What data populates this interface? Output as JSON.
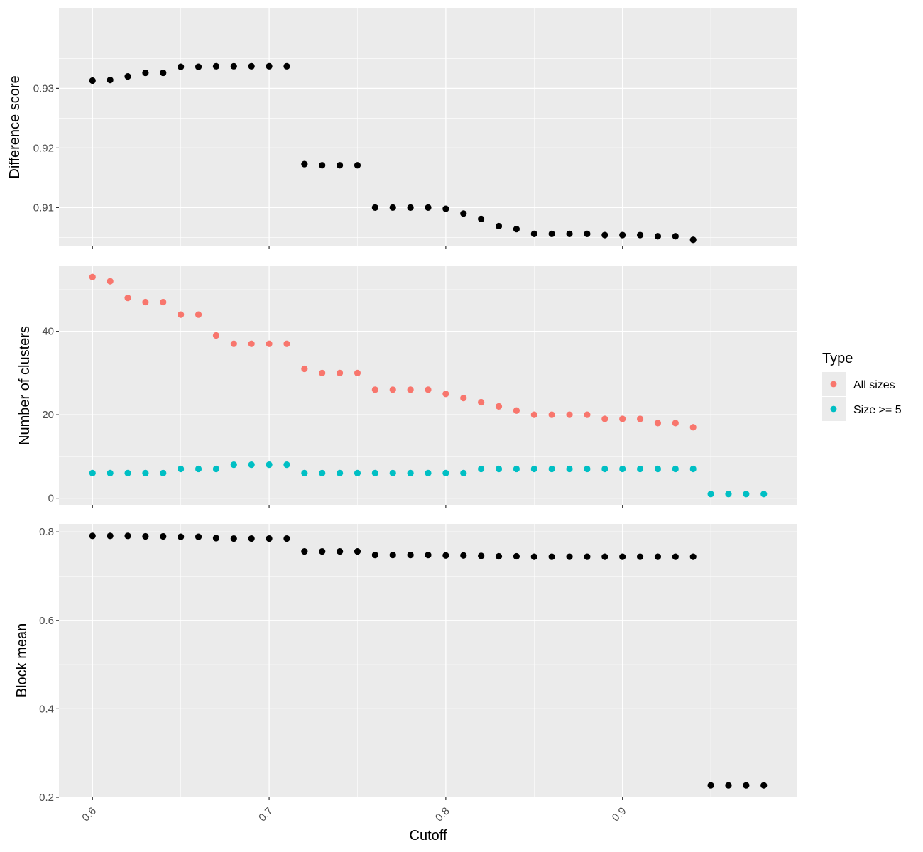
{
  "chart_data": [
    {
      "type": "scatter",
      "panel": "top",
      "xlabel": "",
      "ylabel": "Difference score",
      "ylim": [
        0.9035,
        0.9435
      ],
      "y_ticks": [
        0.91,
        0.92,
        0.93
      ],
      "y_tick_labels": [
        "0.91",
        "0.92",
        "0.93"
      ],
      "y_minor": [
        0.905,
        0.915,
        0.925,
        0.935
      ],
      "grid": true,
      "series": [
        {
          "color": "#000000",
          "x": [
            0.6,
            0.61,
            0.62,
            0.63,
            0.64,
            0.65,
            0.66,
            0.67,
            0.68,
            0.69,
            0.7,
            0.71,
            0.72,
            0.73,
            0.74,
            0.75,
            0.76,
            0.77,
            0.78,
            0.79,
            0.8,
            0.81,
            0.82,
            0.83,
            0.84,
            0.85,
            0.86,
            0.87,
            0.88,
            0.89,
            0.9,
            0.91,
            0.92,
            0.93,
            0.94
          ],
          "y": [
            0.9313,
            0.9314,
            0.932,
            0.9326,
            0.9326,
            0.9336,
            0.9336,
            0.9337,
            0.9337,
            0.9337,
            0.9337,
            0.9337,
            0.9173,
            0.9171,
            0.9171,
            0.9171,
            0.91,
            0.91,
            0.91,
            0.91,
            0.9098,
            0.909,
            0.9081,
            0.9069,
            0.9064,
            0.9056,
            0.9056,
            0.9056,
            0.9056,
            0.9054,
            0.9054,
            0.9054,
            0.9052,
            0.9052,
            0.9046
          ]
        }
      ]
    },
    {
      "type": "scatter",
      "panel": "middle",
      "xlabel": "",
      "ylabel": "Number of clusters",
      "ylim": [
        -1.6,
        55.6
      ],
      "y_ticks": [
        0,
        20,
        40
      ],
      "y_tick_labels": [
        "0",
        "20",
        "40"
      ],
      "y_minor": [
        10,
        30,
        50
      ],
      "grid": true,
      "legend": {
        "title": "Type",
        "position": "right"
      },
      "series": [
        {
          "name": "All sizes",
          "color": "#F8766D",
          "x": [
            0.6,
            0.61,
            0.62,
            0.63,
            0.64,
            0.65,
            0.66,
            0.67,
            0.68,
            0.69,
            0.7,
            0.71,
            0.72,
            0.73,
            0.74,
            0.75,
            0.76,
            0.77,
            0.78,
            0.79,
            0.8,
            0.81,
            0.82,
            0.83,
            0.84,
            0.85,
            0.86,
            0.87,
            0.88,
            0.89,
            0.9,
            0.91,
            0.92,
            0.93,
            0.94
          ],
          "y": [
            53,
            52,
            48,
            47,
            47,
            44,
            44,
            39,
            37,
            37,
            37,
            37,
            31,
            30,
            30,
            30,
            26,
            26,
            26,
            26,
            25,
            24,
            23,
            22,
            21,
            20,
            20,
            20,
            20,
            19,
            19,
            19,
            18,
            18,
            17
          ]
        },
        {
          "name": "Size >= 5",
          "color": "#00BFC4",
          "x": [
            0.6,
            0.61,
            0.62,
            0.63,
            0.64,
            0.65,
            0.66,
            0.67,
            0.68,
            0.69,
            0.7,
            0.71,
            0.72,
            0.73,
            0.74,
            0.75,
            0.76,
            0.77,
            0.78,
            0.79,
            0.8,
            0.81,
            0.82,
            0.83,
            0.84,
            0.85,
            0.86,
            0.87,
            0.88,
            0.89,
            0.9,
            0.91,
            0.92,
            0.93,
            0.94,
            0.95,
            0.96,
            0.97,
            0.98
          ],
          "y": [
            6,
            6,
            6,
            6,
            6,
            7,
            7,
            7,
            8,
            8,
            8,
            8,
            6,
            6,
            6,
            6,
            6,
            6,
            6,
            6,
            6,
            6,
            7,
            7,
            7,
            7,
            7,
            7,
            7,
            7,
            7,
            7,
            7,
            7,
            7,
            1,
            1,
            1,
            1
          ]
        }
      ]
    },
    {
      "type": "scatter",
      "panel": "bottom",
      "xlabel": "Cutoff",
      "ylabel": "Block mean",
      "ylim": [
        0.2,
        0.818
      ],
      "y_ticks": [
        0.2,
        0.4,
        0.6,
        0.8
      ],
      "y_tick_labels": [
        "0.2",
        "0.4",
        "0.6",
        "0.8"
      ],
      "y_minor": [
        0.3,
        0.5,
        0.7
      ],
      "grid": true,
      "series": [
        {
          "color": "#000000",
          "x": [
            0.6,
            0.61,
            0.62,
            0.63,
            0.64,
            0.65,
            0.66,
            0.67,
            0.68,
            0.69,
            0.7,
            0.71,
            0.72,
            0.73,
            0.74,
            0.75,
            0.76,
            0.77,
            0.78,
            0.79,
            0.8,
            0.81,
            0.82,
            0.83,
            0.84,
            0.85,
            0.86,
            0.87,
            0.88,
            0.89,
            0.9,
            0.91,
            0.92,
            0.93,
            0.94,
            0.95,
            0.96,
            0.97,
            0.98
          ],
          "y": [
            0.791,
            0.791,
            0.791,
            0.79,
            0.79,
            0.789,
            0.789,
            0.786,
            0.785,
            0.785,
            0.785,
            0.785,
            0.756,
            0.756,
            0.756,
            0.756,
            0.748,
            0.748,
            0.748,
            0.748,
            0.747,
            0.747,
            0.746,
            0.745,
            0.745,
            0.744,
            0.744,
            0.744,
            0.744,
            0.744,
            0.744,
            0.744,
            0.744,
            0.744,
            0.744,
            0.227,
            0.227,
            0.227,
            0.227
          ]
        }
      ]
    }
  ],
  "x_axis": {
    "title": "Cutoff",
    "xlim": [
      0.581,
      0.999
    ],
    "ticks": [
      0.6,
      0.7,
      0.8,
      0.9
    ],
    "tick_labels": [
      "0.6",
      "0.7",
      "0.8",
      "0.9"
    ],
    "minor": [
      0.65,
      0.75,
      0.85,
      0.95
    ]
  },
  "legend": {
    "title": "Type",
    "items": [
      {
        "label": "All sizes",
        "color": "#F8766D"
      },
      {
        "label": "Size >= 5",
        "color": "#00BFC4"
      }
    ]
  },
  "colors": {
    "panel_background": "#EBEBEB",
    "grid_major": "#FFFFFF",
    "axis_text": "#4D4D4D",
    "tick_mark": "#333333"
  }
}
